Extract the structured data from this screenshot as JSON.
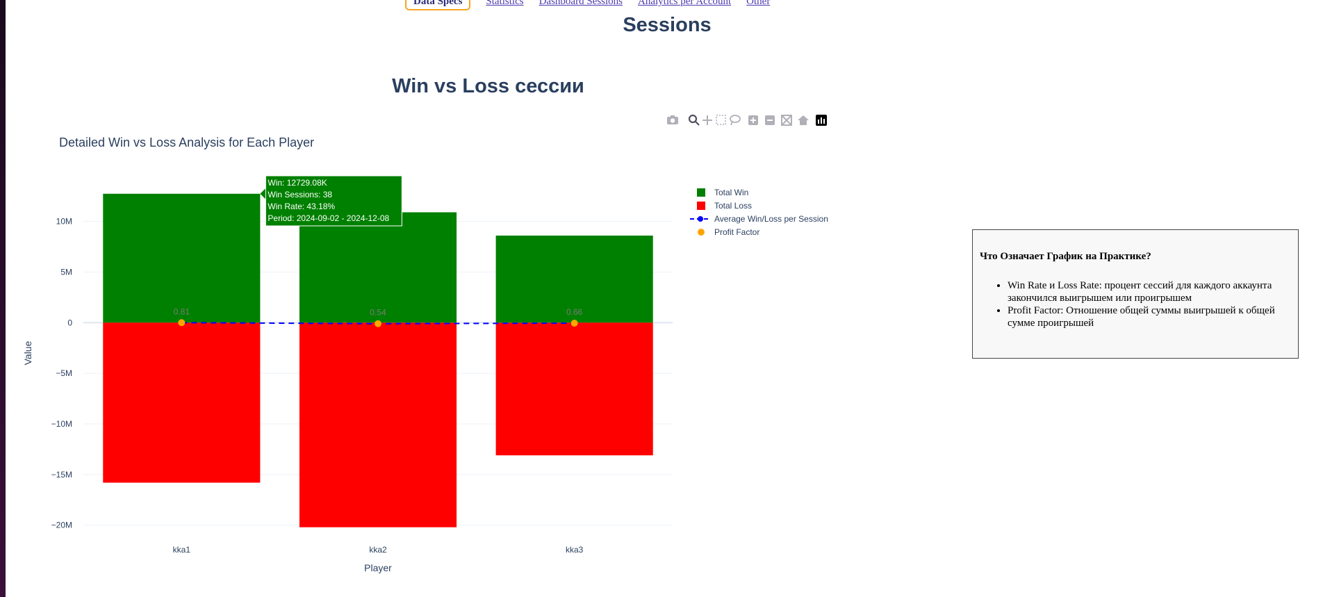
{
  "nav": {
    "active_label": "Data Specs",
    "links": [
      "Statistics",
      "Dashboard Sessions",
      "Analytics per Account",
      "Other"
    ]
  },
  "page_title": "Sessions",
  "section_title": "Win vs Loss сессии",
  "info_box": {
    "heading": "Что Означает График на Практике?",
    "items": [
      "Win Rate и Loss Rate: процент сессий для каждого аккаунта закончился выигрышем или проигрышем",
      "Profit Factor: Отношение общей суммы выигрышей к общей сумме проигрышей"
    ]
  },
  "modebar_icons": [
    "camera-icon",
    "zoom-icon",
    "pan-icon",
    "box-select-icon",
    "lasso-icon",
    "zoom-in-icon",
    "zoom-out-icon",
    "autoscale-icon",
    "home-icon",
    "plotly-logo-icon"
  ],
  "colors": {
    "win": "#008000",
    "loss": "#ff0000",
    "average": "#0000ff",
    "profit": "#ffa500",
    "title": "#2a3f5f"
  },
  "chart_data": {
    "type": "bar",
    "title": "Detailed Win vs Loss Analysis for Each Player",
    "xlabel": "Player",
    "ylabel": "Value",
    "categories": [
      "kka1",
      "kka2",
      "kka3"
    ],
    "ylim": [
      -20500000,
      14500000
    ],
    "yticks": [
      10000000,
      5000000,
      0,
      -5000000,
      -10000000,
      -15000000,
      -20000000
    ],
    "ytick_labels": [
      "10M",
      "5M",
      "0",
      "−5M",
      "−10M",
      "−15M",
      "−20M"
    ],
    "barmode": "relative",
    "grid": true,
    "legend_position": "top-right",
    "series": [
      {
        "name": "Total Win",
        "type": "bar",
        "values": [
          12729080,
          10900000,
          8600000
        ]
      },
      {
        "name": "Total Loss",
        "type": "bar",
        "values": [
          -15800000,
          -20200000,
          -13100000
        ]
      },
      {
        "name": "Average Win/Loss per Session",
        "type": "line",
        "dash": "dash",
        "values": [
          0,
          -100000,
          -50000
        ]
      },
      {
        "name": "Profit Factor",
        "type": "scatter",
        "values": [
          0.81,
          0.54,
          0.66
        ],
        "labels": [
          "0.81",
          "0.54",
          "0.66"
        ]
      }
    ],
    "tooltip": {
      "category": "kka1",
      "lines": [
        "Win: 12729.08K",
        "Win Sessions: 38",
        "Win Rate: 43.18%",
        "Period: 2024-09-02 - 2024-12-08"
      ]
    }
  }
}
